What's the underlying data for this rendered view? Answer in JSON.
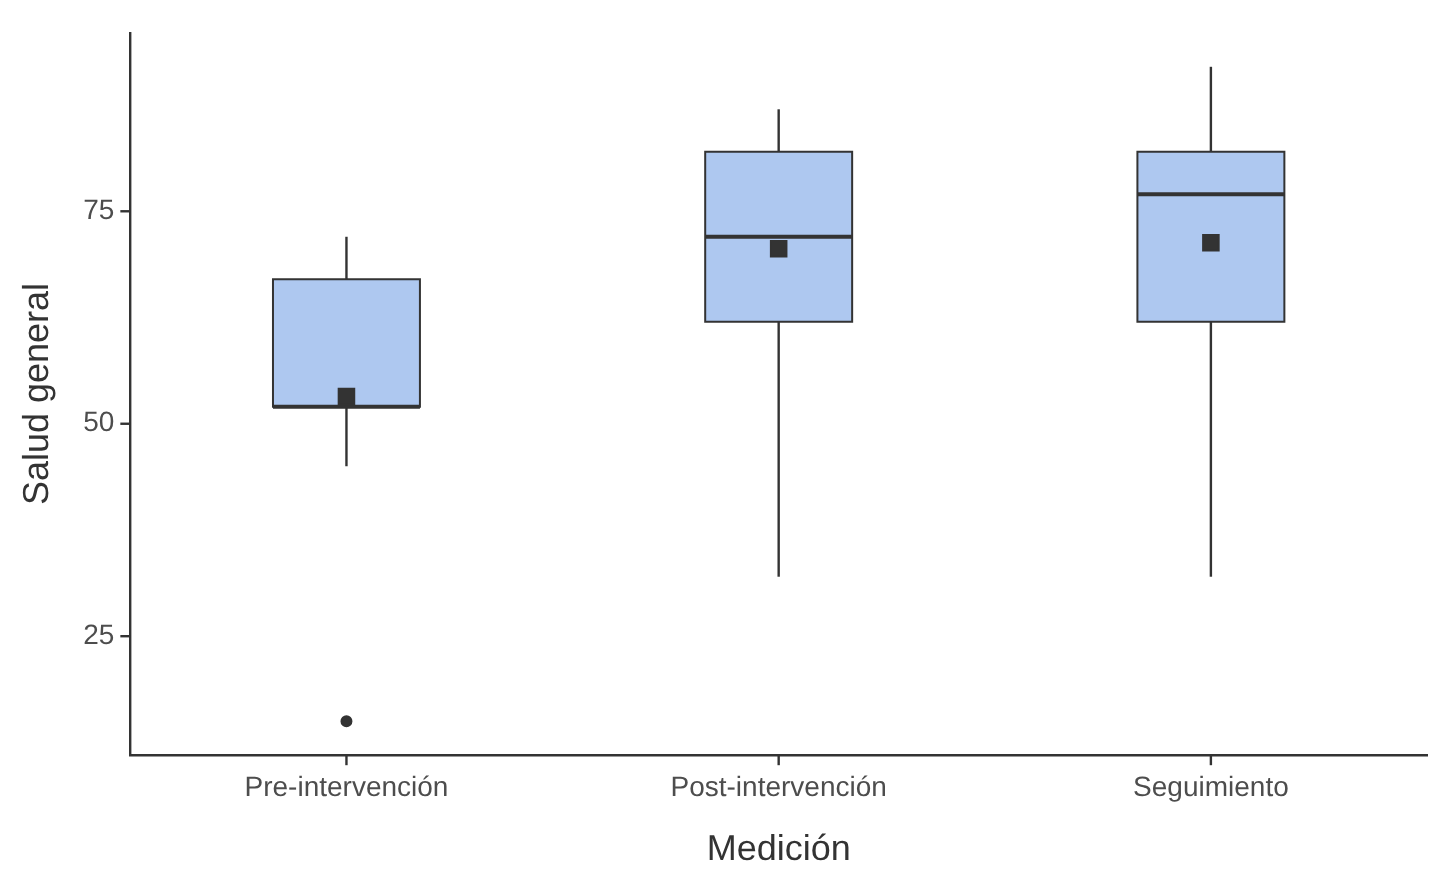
{
  "chart_data": {
    "type": "box",
    "xlabel": "Medición",
    "ylabel": "Salud general",
    "categories": [
      "Pre-intervención",
      "Post-intervención",
      "Seguimiento"
    ],
    "color": "#aec8f0",
    "boxes": [
      {
        "low": 45,
        "q1": 52,
        "median": 52,
        "q3": 67,
        "high": 72,
        "mean": 53.2,
        "outliers": [
          15
        ]
      },
      {
        "low": 32,
        "q1": 62,
        "median": 72,
        "q3": 82,
        "high": 87,
        "mean": 70.6
      },
      {
        "low": 32,
        "q1": 62,
        "median": 77,
        "q3": 82,
        "high": 92,
        "mean": 71.3
      }
    ],
    "ylim": [
      11,
      96
    ],
    "yticks": [
      25,
      50,
      75
    ],
    "grid": false,
    "legend": false
  }
}
